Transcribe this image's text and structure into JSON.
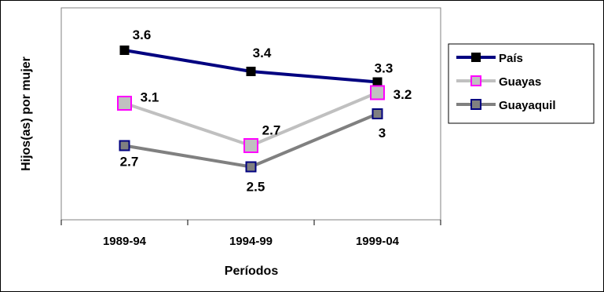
{
  "chart_data": {
    "type": "line",
    "categories": [
      "1989-94",
      "1994-99",
      "1999-04"
    ],
    "xlabel": "Períodos",
    "ylabel": "Hijos(as) por mujer",
    "ylim": [
      2.0,
      4.0
    ],
    "grid": false,
    "legend_position": "right",
    "series": [
      {
        "name": "País",
        "values": [
          3.6,
          3.4,
          3.3
        ],
        "labels": [
          "3.6",
          "3.4",
          "3.3"
        ],
        "color": "#000080",
        "marker": "square",
        "marker_fill": "#000000",
        "marker_stroke": "#000000"
      },
      {
        "name": "Guayas",
        "values": [
          3.1,
          2.7,
          3.2
        ],
        "labels": [
          "3.1",
          "2.7",
          "3.2"
        ],
        "color": "#c0c0c0",
        "marker": "square",
        "marker_fill": "#c0c0c0",
        "marker_stroke": "#ff00ff"
      },
      {
        "name": "Guayaquil",
        "values": [
          2.7,
          2.5,
          3.0
        ],
        "labels": [
          "2.7",
          "2.5",
          "3"
        ],
        "color": "#808080",
        "marker": "square",
        "marker_fill": "#808080",
        "marker_stroke": "#000080"
      }
    ]
  }
}
